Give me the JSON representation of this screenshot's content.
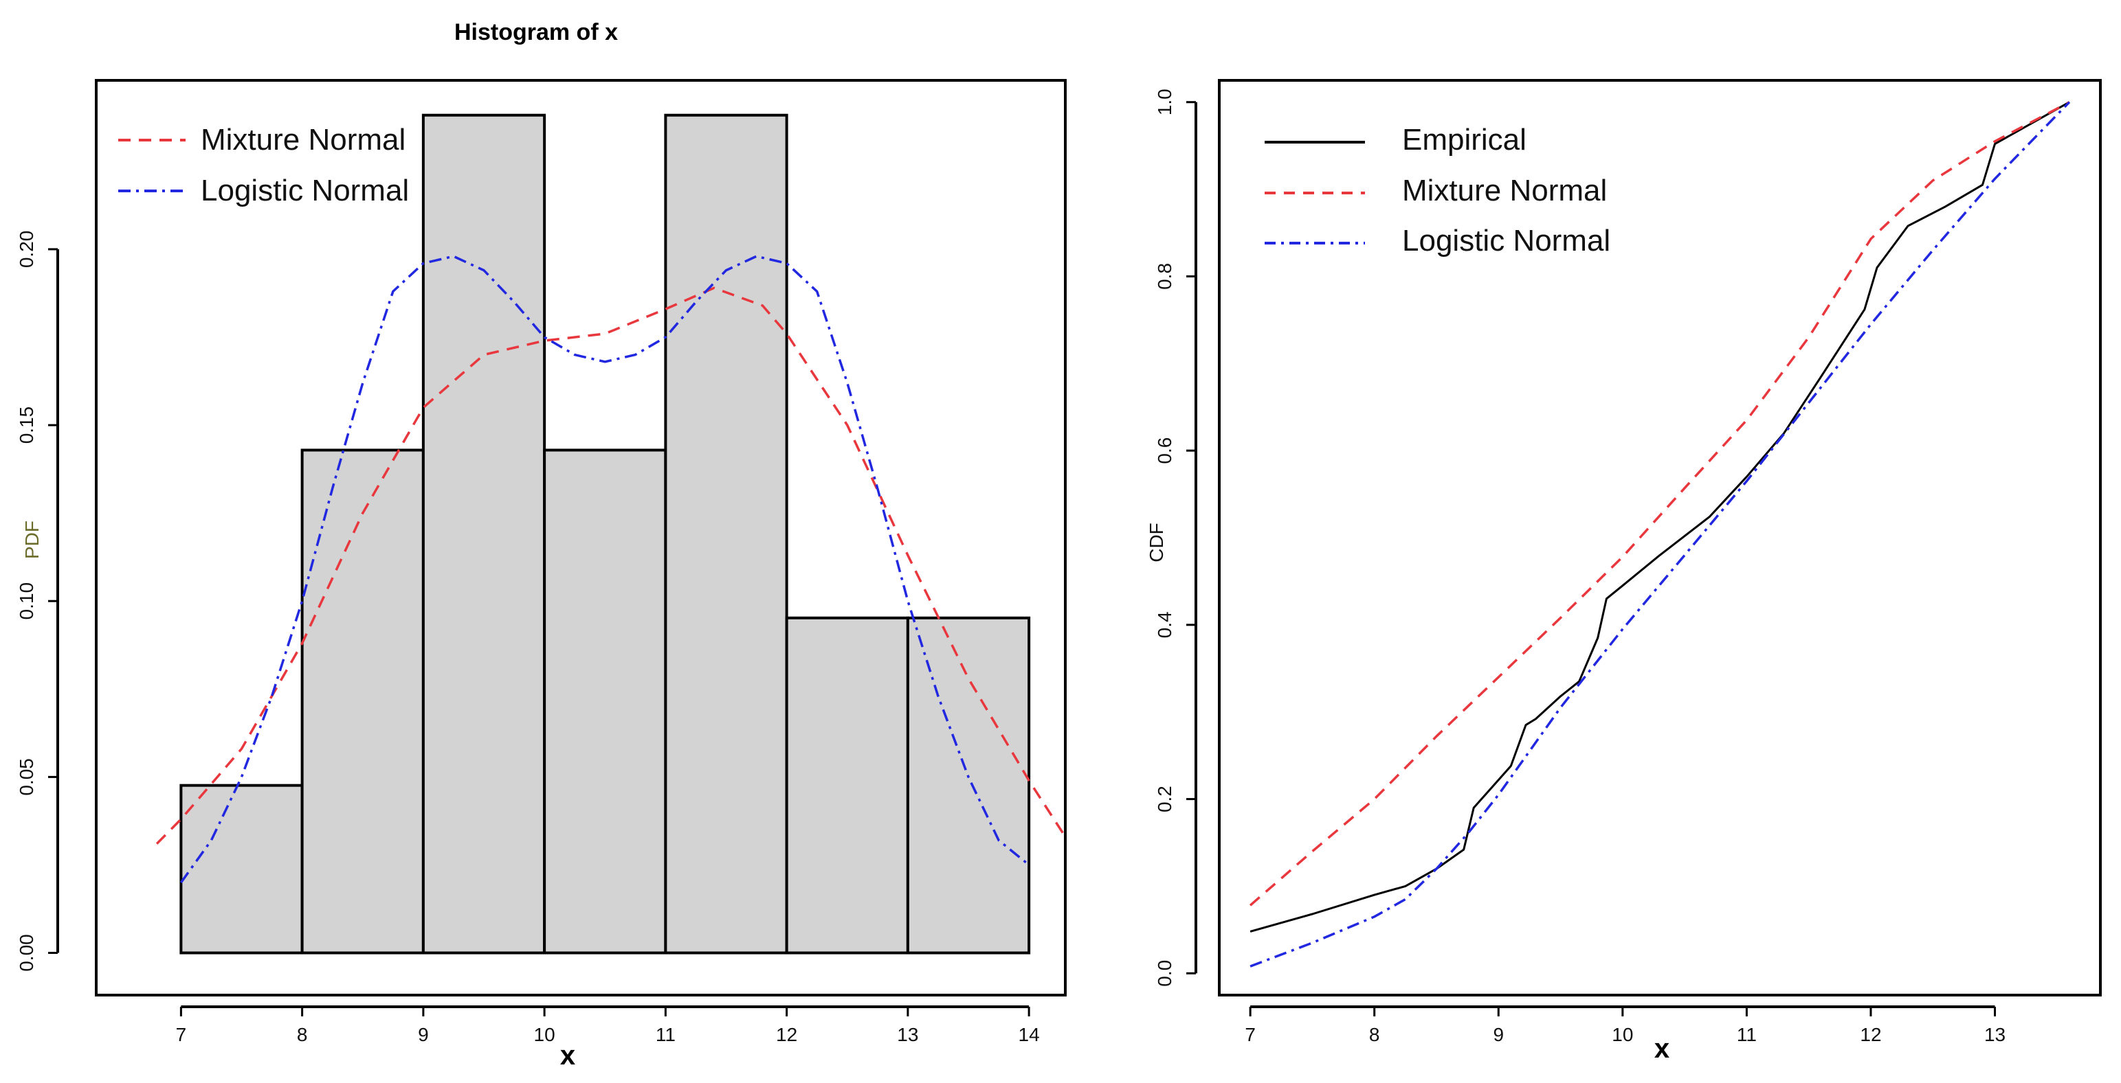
{
  "chart_data": [
    {
      "type": "histogram",
      "title": "Histogram of x",
      "xlabel": "x",
      "ylabel": "PDF",
      "xlim": [
        6.3,
        14.3
      ],
      "ylim": [
        -0.012,
        0.248
      ],
      "xticks": [
        7,
        8,
        9,
        10,
        11,
        12,
        13,
        14
      ],
      "yticks": [
        0.0,
        0.05,
        0.1,
        0.15,
        0.2
      ],
      "ytick_labels": [
        "0.00",
        "0.05",
        "0.10",
        "0.15",
        "0.20"
      ],
      "bins": [
        {
          "from": 7,
          "to": 8,
          "density": 0.0476
        },
        {
          "from": 8,
          "to": 9,
          "density": 0.1429
        },
        {
          "from": 9,
          "to": 10,
          "density": 0.2381
        },
        {
          "from": 10,
          "to": 11,
          "density": 0.1429
        },
        {
          "from": 11,
          "to": 12,
          "density": 0.2381
        },
        {
          "from": 12,
          "to": 13,
          "density": 0.0952
        },
        {
          "from": 13,
          "to": 14,
          "density": 0.0952
        }
      ],
      "series": [
        {
          "name": "Mixture Normal",
          "color": "#e8373d",
          "style": "dashed",
          "x": [
            6.8,
            7.0,
            7.5,
            8.0,
            8.5,
            9.0,
            9.5,
            10.0,
            10.5,
            11.0,
            11.4,
            11.8,
            12.0,
            12.5,
            13.0,
            13.5,
            14.0,
            14.3
          ],
          "y": [
            0.031,
            0.038,
            0.058,
            0.088,
            0.125,
            0.155,
            0.17,
            0.174,
            0.176,
            0.183,
            0.189,
            0.184,
            0.176,
            0.15,
            0.113,
            0.078,
            0.049,
            0.033
          ]
        },
        {
          "name": "Logistic Normal",
          "color": "#2128e0",
          "style": "dashdot",
          "x": [
            7.0,
            7.25,
            7.5,
            7.75,
            8.0,
            8.25,
            8.5,
            8.75,
            9.0,
            9.25,
            9.5,
            9.75,
            10.0,
            10.25,
            10.5,
            10.75,
            11.0,
            11.25,
            11.5,
            11.75,
            12.0,
            12.25,
            12.5,
            12.75,
            13.0,
            13.25,
            13.5,
            13.75,
            14.0
          ],
          "y": [
            0.02,
            0.032,
            0.05,
            0.073,
            0.1,
            0.132,
            0.162,
            0.188,
            0.196,
            0.198,
            0.194,
            0.185,
            0.175,
            0.17,
            0.168,
            0.17,
            0.175,
            0.185,
            0.194,
            0.198,
            0.196,
            0.188,
            0.162,
            0.132,
            0.1,
            0.073,
            0.05,
            0.032,
            0.025
          ]
        }
      ]
    },
    {
      "type": "line",
      "title": "",
      "xlabel": "x",
      "ylabel": "CDF",
      "xlim": [
        6.75,
        13.85
      ],
      "ylim": [
        -0.025,
        1.025
      ],
      "xticks": [
        7,
        8,
        9,
        10,
        11,
        12,
        13
      ],
      "yticks": [
        0.0,
        0.2,
        0.4,
        0.6,
        0.8,
        1.0
      ],
      "ytick_labels": [
        "0.0",
        "0.2",
        "0.4",
        "0.6",
        "0.8",
        "1.0"
      ],
      "series": [
        {
          "name": "Empirical",
          "color": "#000000",
          "style": "solid",
          "x": [
            7.0,
            7.5,
            8.0,
            8.25,
            8.5,
            8.72,
            8.8,
            9.1,
            9.22,
            9.3,
            9.5,
            9.65,
            9.8,
            9.87,
            10.0,
            10.3,
            10.7,
            11.0,
            11.3,
            11.6,
            11.95,
            12.05,
            12.3,
            12.6,
            12.9,
            13.0,
            13.6
          ],
          "y": [
            0.048,
            0.068,
            0.09,
            0.1,
            0.12,
            0.142,
            0.19,
            0.238,
            0.285,
            0.292,
            0.318,
            0.335,
            0.385,
            0.43,
            0.445,
            0.48,
            0.524,
            0.57,
            0.62,
            0.685,
            0.762,
            0.81,
            0.858,
            0.88,
            0.905,
            0.952,
            1.0
          ]
        },
        {
          "name": "Mixture Normal",
          "color": "#e8373d",
          "style": "dashed",
          "x": [
            7.0,
            7.5,
            8.0,
            8.5,
            9.0,
            9.5,
            10.0,
            10.5,
            11.0,
            11.5,
            12.0,
            12.5,
            13.0,
            13.6
          ],
          "y": [
            0.078,
            0.14,
            0.2,
            0.272,
            0.34,
            0.408,
            0.478,
            0.557,
            0.635,
            0.73,
            0.843,
            0.91,
            0.955,
            1.0
          ]
        },
        {
          "name": "Logistic Normal",
          "color": "#2128e0",
          "style": "dashdot",
          "x": [
            7.0,
            7.5,
            8.0,
            8.25,
            8.5,
            8.75,
            9.0,
            9.25,
            9.5,
            9.75,
            10.0,
            10.5,
            11.0,
            11.5,
            12.0,
            12.5,
            13.0,
            13.6
          ],
          "y": [
            0.008,
            0.035,
            0.065,
            0.085,
            0.12,
            0.16,
            0.205,
            0.255,
            0.305,
            0.35,
            0.395,
            0.48,
            0.565,
            0.655,
            0.745,
            0.83,
            0.912,
            1.0
          ]
        }
      ]
    }
  ]
}
